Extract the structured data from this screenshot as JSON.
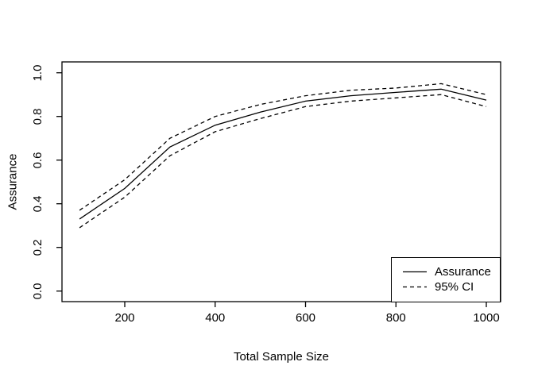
{
  "chart_data": {
    "type": "line",
    "title": "",
    "xlabel": "Total Sample Size",
    "ylabel": "Assurance",
    "x": [
      100,
      200,
      300,
      400,
      500,
      600,
      700,
      800,
      900,
      1000
    ],
    "series": [
      {
        "name": "Assurance",
        "line": "solid",
        "color": "#000000",
        "values": [
          0.33,
          0.47,
          0.66,
          0.76,
          0.82,
          0.87,
          0.895,
          0.91,
          0.925,
          0.875
        ]
      },
      {
        "name": "95% CI upper",
        "line": "dashed",
        "color": "#000000",
        "values": [
          0.37,
          0.51,
          0.7,
          0.8,
          0.855,
          0.895,
          0.92,
          0.93,
          0.95,
          0.9
        ]
      },
      {
        "name": "95% CI lower",
        "line": "dashed",
        "color": "#000000",
        "values": [
          0.29,
          0.43,
          0.62,
          0.73,
          0.79,
          0.845,
          0.87,
          0.885,
          0.9,
          0.845
        ]
      }
    ],
    "x_tick_labels": [
      "200",
      "400",
      "600",
      "800",
      "1000"
    ],
    "x_tick_values": [
      200,
      400,
      600,
      800,
      1000
    ],
    "y_tick_labels": [
      "0.0",
      "0.2",
      "0.4",
      "0.6",
      "0.8",
      "1.0"
    ],
    "y_tick_values": [
      0,
      0.2,
      0.4,
      0.6,
      0.8,
      1.0
    ],
    "xlim": [
      100,
      1000
    ],
    "ylim": [
      0,
      1
    ],
    "grid": false,
    "background": "#ffffff",
    "axis_color": "#000000",
    "legend": {
      "position": "bottomright",
      "entries": [
        {
          "label": "Assurance",
          "line": "solid"
        },
        {
          "label": "95% CI",
          "line": "dashed"
        }
      ]
    }
  }
}
